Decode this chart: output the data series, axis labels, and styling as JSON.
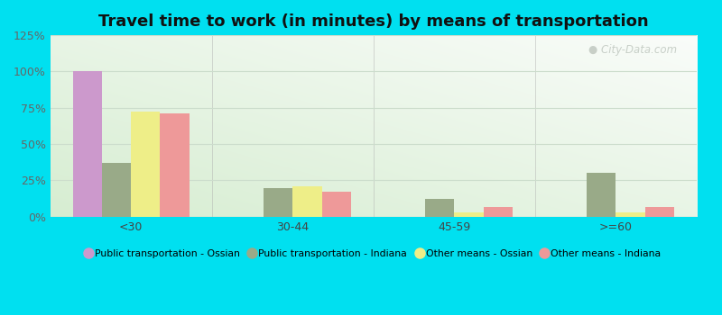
{
  "title": "Travel time to work (in minutes) by means of transportation",
  "categories": [
    "<30",
    "30-44",
    "45-59",
    ">=60"
  ],
  "series": [
    {
      "label": "Public transportation - Ossian",
      "color": "#cc99cc",
      "values": [
        100,
        0,
        0,
        0
      ]
    },
    {
      "label": "Public transportation - Indiana",
      "color": "#99aa88",
      "values": [
        37,
        20,
        12,
        30
      ]
    },
    {
      "label": "Other means - Ossian",
      "color": "#eeee88",
      "values": [
        72,
        21,
        3,
        3
      ]
    },
    {
      "label": "Other means - Indiana",
      "color": "#ee9999",
      "values": [
        71,
        17,
        7,
        7
      ]
    }
  ],
  "ylim": [
    0,
    125
  ],
  "yticks": [
    0,
    25,
    50,
    75,
    100,
    125
  ],
  "ytick_labels": [
    "0%",
    "25%",
    "50%",
    "75%",
    "100%",
    "125%"
  ],
  "background_outer": "#00e0f0",
  "grid_color": "#ccddcc",
  "bar_width": 0.18,
  "title_fontsize": 13,
  "watermark_text": "City-Data.com",
  "watermark_color": "#c0c8c0"
}
